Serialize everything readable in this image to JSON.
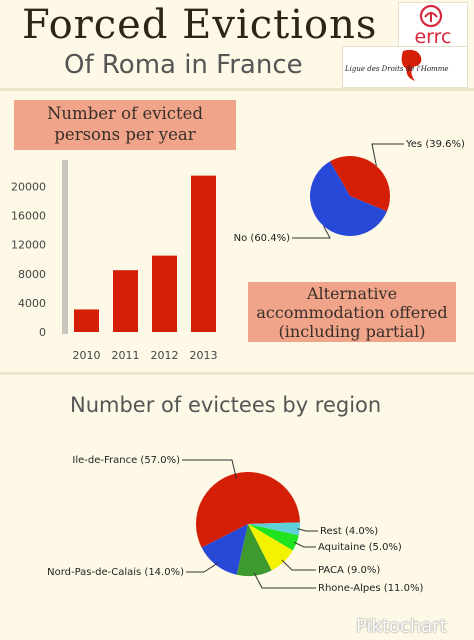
{
  "header": {
    "title": "Forced Evictions",
    "subtitle": "Of Roma in France"
  },
  "logos": {
    "errc_text": "errc",
    "ldh_text": "Ligue des Droits de l'Homme"
  },
  "boxes": {
    "evicted_per_year": "Number of evicted persons per year",
    "alternative_accommodation": "Alternative accommodation offered (including partial)"
  },
  "section_title": "Number of evictees by region",
  "watermark": "Piktochart",
  "colors": {
    "background": "#fdf9e6",
    "bar": "#d41e06",
    "box": "#f0a48a",
    "red": "#d41e06",
    "blue": "#2849d8",
    "green": "#3c9a2e",
    "yellow": "#f4f200",
    "lime": "#1ee31e",
    "cyan": "#5fd0da"
  },
  "chart_data": [
    {
      "type": "bar",
      "title": "Number of evicted persons per year",
      "categories": [
        "2010",
        "2011",
        "2012",
        "2013"
      ],
      "values": [
        3100,
        8500,
        10500,
        21500
      ],
      "ylim": [
        0,
        22000
      ],
      "yticks": [
        "0",
        "4000",
        "8000",
        "12000",
        "16000",
        "20000"
      ],
      "grid": false
    },
    {
      "type": "pie",
      "title": "Alternative accommodation offered (including partial)",
      "labels": [
        "Yes (39.6%)",
        "No (60.4%)"
      ],
      "values": [
        39.6,
        60.4
      ],
      "colors": [
        "#d41e06",
        "#2849d8"
      ]
    },
    {
      "type": "pie",
      "title": "Number of evictees by region",
      "labels": [
        "Ile-de-France (57.0%)",
        "Rest (4.0%)",
        "Aquitaine (5.0%)",
        "PACA (9.0%)",
        "Rhone-Alpes (11.0%)",
        "Nord-Pas-de-Calais (14.0%)"
      ],
      "values": [
        57.0,
        4.0,
        5.0,
        9.0,
        11.0,
        14.0
      ],
      "colors": [
        "#d41e06",
        "#5fd0da",
        "#1ee31e",
        "#f4f200",
        "#3c9a2e",
        "#2849d8"
      ]
    }
  ]
}
